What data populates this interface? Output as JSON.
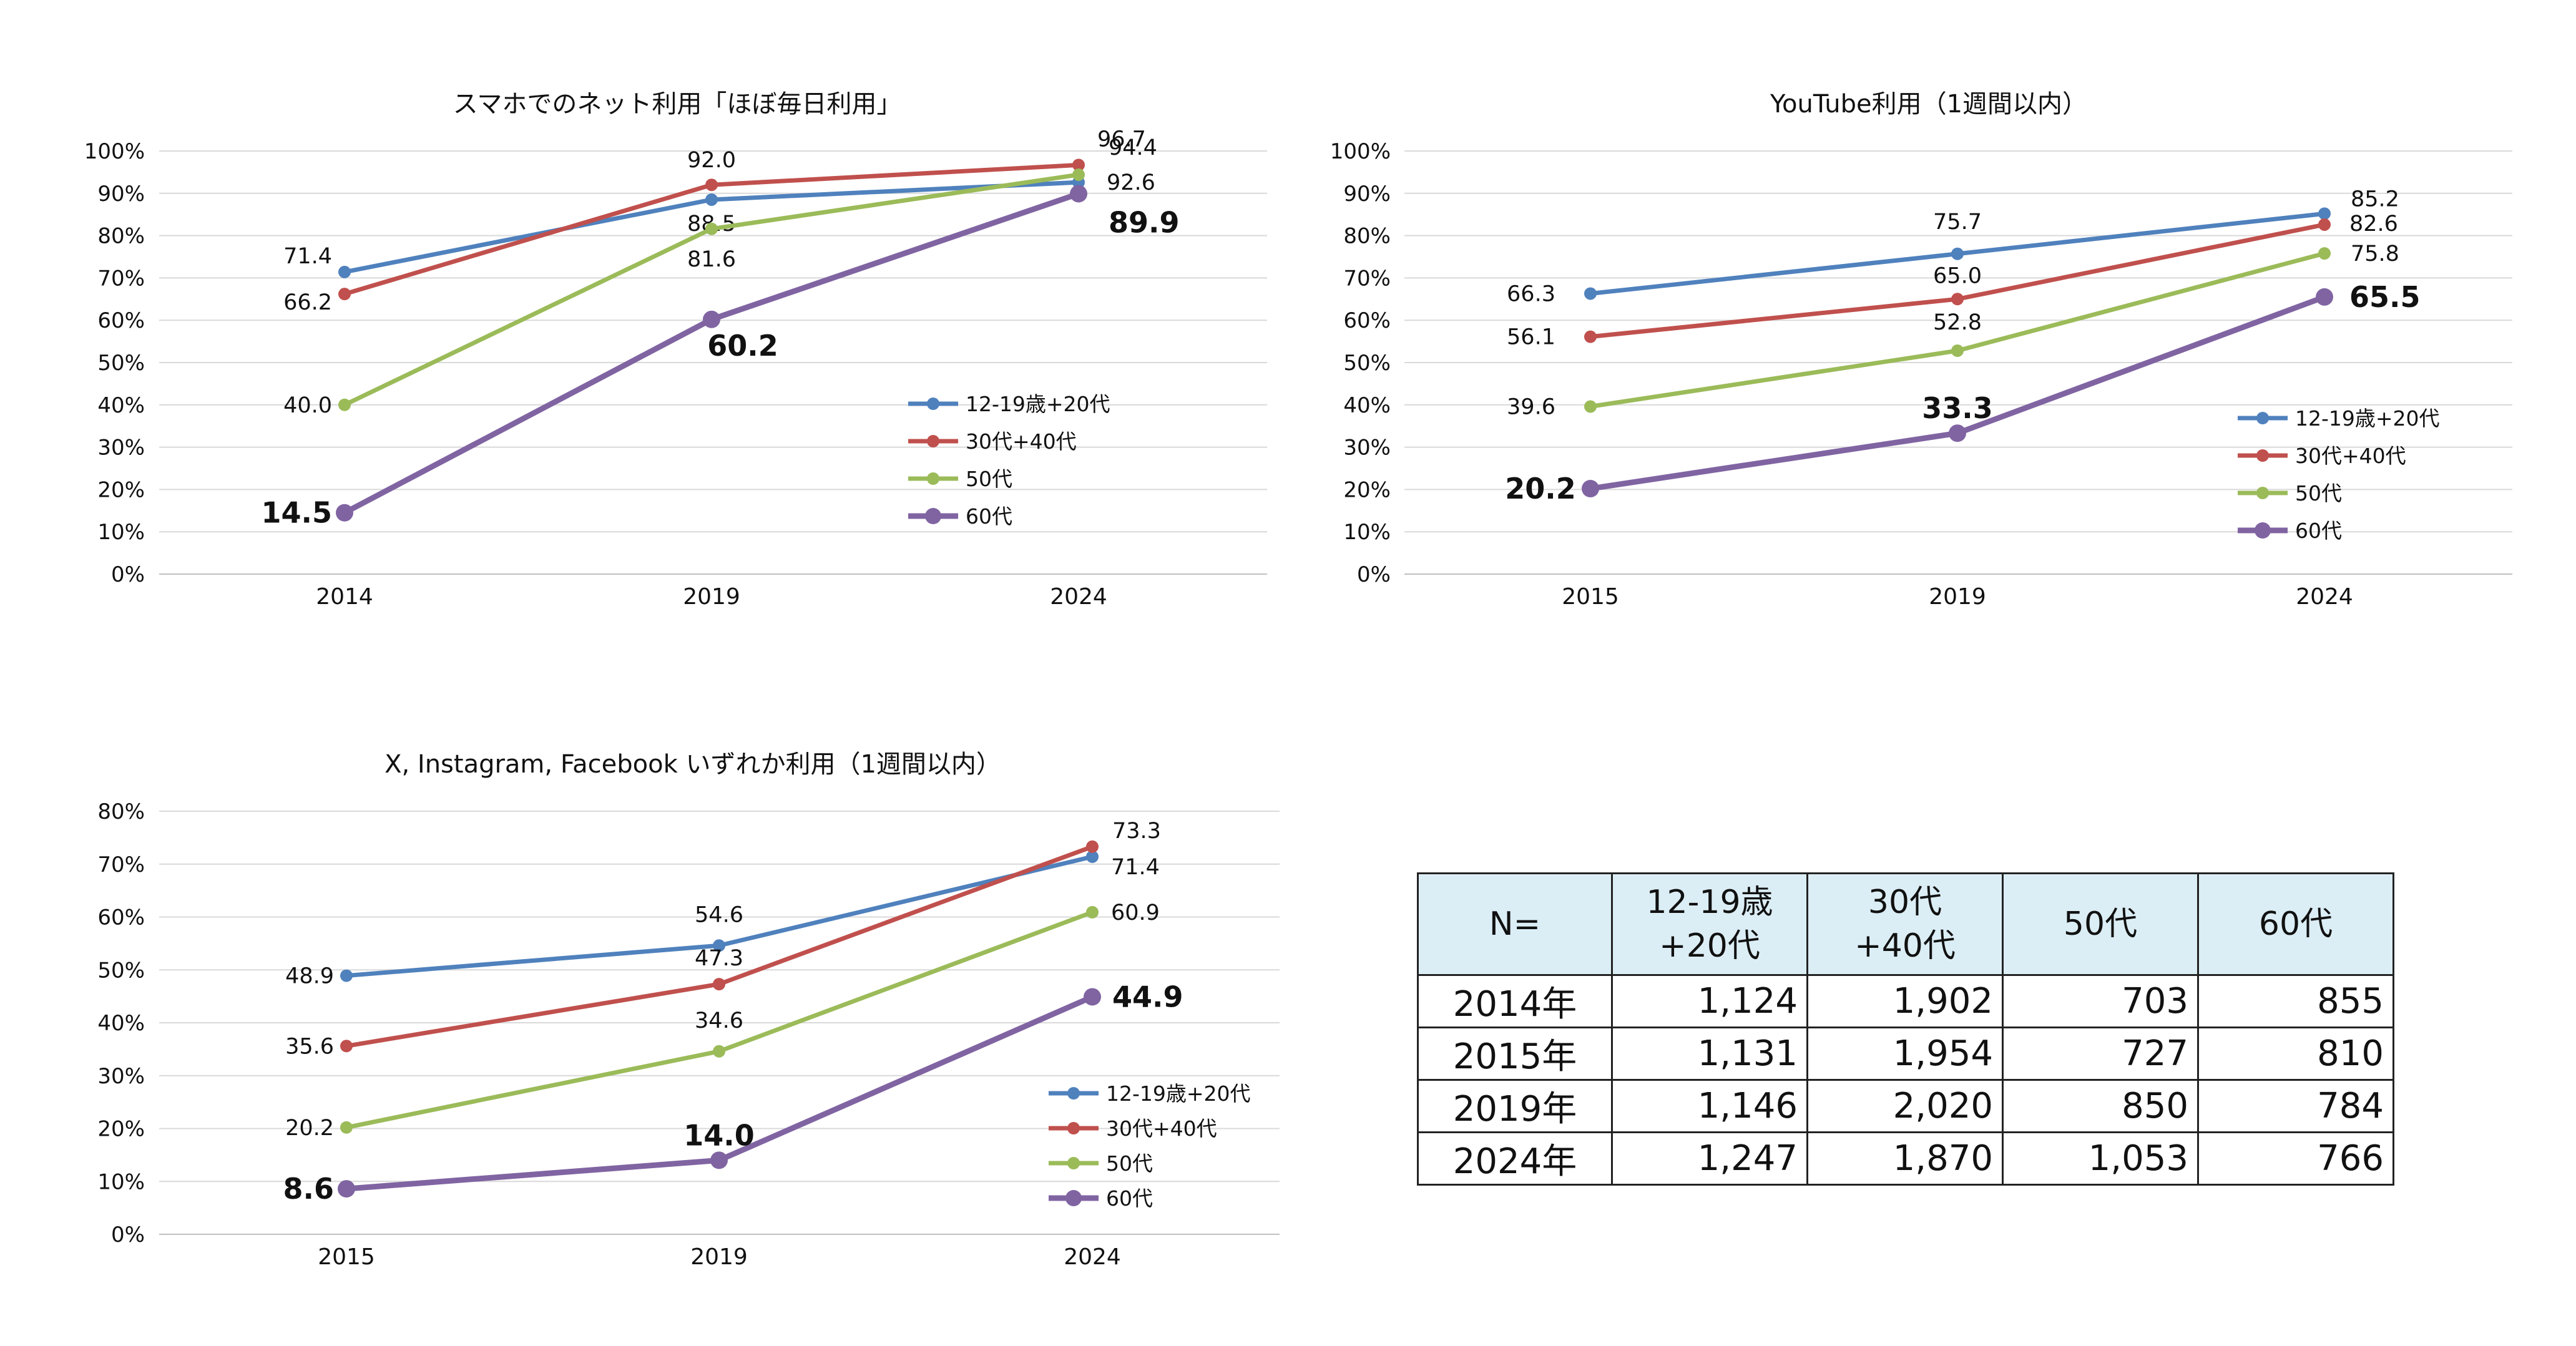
{
  "charts": [
    {
      "id": "chart1",
      "type": "line",
      "title": "スマホでのネット利用「ほぼ毎日利用」",
      "categories": [
        "2014",
        "2019",
        "2024"
      ],
      "ylim": [
        0,
        100
      ],
      "yticks": [
        "0%",
        "10%",
        "20%",
        "30%",
        "40%",
        "50%",
        "60%",
        "70%",
        "80%",
        "90%",
        "100%"
      ],
      "series": [
        {
          "name": "12-19歳+20代",
          "color": "#4f81bd",
          "values": [
            71.4,
            88.5,
            92.6
          ],
          "labels": [
            "71.4",
            "88.5",
            "92.6"
          ]
        },
        {
          "name": "30代+40代",
          "color": "#c0504d",
          "values": [
            66.2,
            92.0,
            96.7
          ],
          "labels": [
            "66.2",
            "92.0",
            "96.7"
          ]
        },
        {
          "name": "50代",
          "color": "#9bbb59",
          "values": [
            40.0,
            81.6,
            94.4
          ],
          "labels": [
            "40.0",
            "81.6",
            "94.4"
          ]
        },
        {
          "name": "60代",
          "color": "#8064a2",
          "values": [
            14.5,
            60.2,
            89.9
          ],
          "labels": [
            "14.5",
            "60.2",
            "89.9"
          ]
        }
      ]
    },
    {
      "id": "chart2",
      "type": "line",
      "title": "YouTube利用（1週間以内）",
      "categories": [
        "2015",
        "2019",
        "2024"
      ],
      "ylim": [
        0,
        100
      ],
      "yticks": [
        "0%",
        "10%",
        "20%",
        "30%",
        "40%",
        "50%",
        "60%",
        "70%",
        "80%",
        "90%",
        "100%"
      ],
      "series": [
        {
          "name": "12-19歳+20代",
          "color": "#4f81bd",
          "values": [
            66.3,
            75.7,
            85.2
          ],
          "labels": [
            "66.3",
            "75.7",
            "85.2"
          ]
        },
        {
          "name": "30代+40代",
          "color": "#c0504d",
          "values": [
            56.1,
            65.0,
            82.6
          ],
          "labels": [
            "56.1",
            "65.0",
            "82.6"
          ]
        },
        {
          "name": "50代",
          "color": "#9bbb59",
          "values": [
            39.6,
            52.8,
            75.8
          ],
          "labels": [
            "39.6",
            "52.8",
            "75.8"
          ]
        },
        {
          "name": "60代",
          "color": "#8064a2",
          "values": [
            20.2,
            33.3,
            65.5
          ],
          "labels": [
            "20.2",
            "33.3",
            "65.5"
          ]
        }
      ]
    },
    {
      "id": "chart3",
      "type": "line",
      "title": "X, Instagram, Facebook いずれか利用（1週間以内）",
      "categories": [
        "2015",
        "2019",
        "2024"
      ],
      "ylim": [
        0,
        80
      ],
      "yticks": [
        "0%",
        "10%",
        "20%",
        "30%",
        "40%",
        "50%",
        "60%",
        "70%",
        "80%"
      ],
      "series": [
        {
          "name": "12-19歳+20代",
          "color": "#4f81bd",
          "values": [
            48.9,
            54.6,
            71.4
          ],
          "labels": [
            "48.9",
            "54.6",
            "71.4"
          ]
        },
        {
          "name": "30代+40代",
          "color": "#c0504d",
          "values": [
            35.6,
            47.3,
            73.3
          ],
          "labels": [
            "35.6",
            "47.3",
            "73.3"
          ]
        },
        {
          "name": "50代",
          "color": "#9bbb59",
          "values": [
            20.2,
            34.6,
            60.9
          ],
          "labels": [
            "20.2",
            "34.6",
            "60.9"
          ]
        },
        {
          "name": "60代",
          "color": "#8064a2",
          "values": [
            8.6,
            14.0,
            44.9
          ],
          "labels": [
            "8.6",
            "14.0",
            "44.9"
          ]
        }
      ]
    }
  ],
  "chart_data": [
    {
      "type": "line",
      "title": "スマホでのネット利用「ほぼ毎日利用」",
      "categories": [
        "2014",
        "2019",
        "2024"
      ],
      "ylim": [
        0,
        100
      ],
      "series": [
        {
          "name": "12-19歳+20代",
          "values": [
            71.4,
            88.5,
            92.6
          ]
        },
        {
          "name": "30代+40代",
          "values": [
            66.2,
            92.0,
            96.7
          ]
        },
        {
          "name": "50代",
          "values": [
            40.0,
            81.6,
            94.4
          ]
        },
        {
          "name": "60代",
          "values": [
            14.5,
            60.2,
            89.9
          ]
        }
      ]
    },
    {
      "type": "line",
      "title": "YouTube利用（1週間以内）",
      "categories": [
        "2015",
        "2019",
        "2024"
      ],
      "ylim": [
        0,
        100
      ],
      "series": [
        {
          "name": "12-19歳+20代",
          "values": [
            66.3,
            75.7,
            85.2
          ]
        },
        {
          "name": "30代+40代",
          "values": [
            56.1,
            65.0,
            82.6
          ]
        },
        {
          "name": "50代",
          "values": [
            39.6,
            52.8,
            75.8
          ]
        },
        {
          "name": "60代",
          "values": [
            20.2,
            33.3,
            65.5
          ]
        }
      ]
    },
    {
      "type": "line",
      "title": "X, Instagram, Facebook いずれか利用（1週間以内）",
      "categories": [
        "2015",
        "2019",
        "2024"
      ],
      "ylim": [
        0,
        80
      ],
      "series": [
        {
          "name": "12-19歳+20代",
          "values": [
            48.9,
            54.6,
            71.4
          ]
        },
        {
          "name": "30代+40代",
          "values": [
            35.6,
            47.3,
            73.3
          ]
        },
        {
          "name": "50代",
          "values": [
            20.2,
            34.6,
            60.9
          ]
        },
        {
          "name": "60代",
          "values": [
            8.6,
            14.0,
            44.9
          ]
        }
      ]
    },
    {
      "type": "table",
      "columns": [
        "N=",
        "12-19歳\n+20代",
        "30代\n+40代",
        "50代",
        "60代"
      ],
      "rows": [
        [
          "2014年",
          "1,124",
          "1,902",
          "703",
          "855"
        ],
        [
          "2015年",
          "1,131",
          "1,954",
          "727",
          "810"
        ],
        [
          "2019年",
          "1,146",
          "2,020",
          "850",
          "784"
        ],
        [
          "2024年",
          "1,247",
          "1,870",
          "1,053",
          "766"
        ]
      ]
    }
  ],
  "table": {
    "header": {
      "n": "N=",
      "c1_line1": "12-19歳",
      "c1_line2": "+20代",
      "c2_line1": "30代",
      "c2_line2": "+40代",
      "c3": "50代",
      "c4": "60代"
    },
    "rows": [
      {
        "year": "2014年",
        "v1": "1,124",
        "v2": "1,902",
        "v3": "703",
        "v4": "855"
      },
      {
        "year": "2015年",
        "v1": "1,131",
        "v2": "1,954",
        "v3": "727",
        "v4": "810"
      },
      {
        "year": "2019年",
        "v1": "1,146",
        "v2": "2,020",
        "v3": "850",
        "v4": "784"
      },
      {
        "year": "2024年",
        "v1": "1,247",
        "v2": "1,870",
        "v3": "1,053",
        "v4": "766"
      }
    ]
  }
}
